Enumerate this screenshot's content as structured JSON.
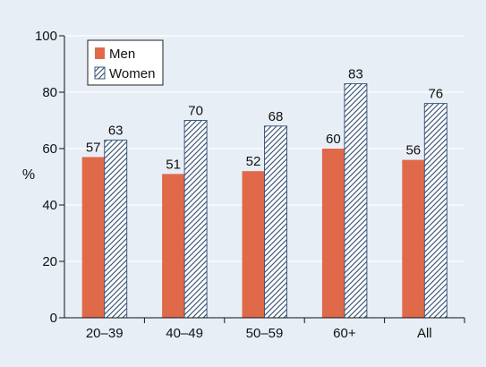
{
  "chart_data": {
    "type": "bar",
    "categories": [
      "20–39",
      "40–49",
      "50–59",
      "60+",
      "All"
    ],
    "series": [
      {
        "name": "Men",
        "values": [
          57,
          51,
          52,
          60,
          56
        ],
        "color": "#e0694a",
        "pattern": "solid"
      },
      {
        "name": "Women",
        "values": [
          63,
          70,
          68,
          83,
          76
        ],
        "color": "#ffffff",
        "pattern": "diagonal-hatch",
        "hatch_color": "#3f5a7a"
      }
    ],
    "title": "",
    "xlabel": "",
    "ylabel": "%",
    "ylim": [
      0,
      100
    ],
    "yticks": [
      0,
      20,
      40,
      60,
      80,
      100
    ],
    "grid": "horizontal",
    "legend": "top-left",
    "background": "#e8eef6",
    "gridline_color": "#ffffff"
  }
}
